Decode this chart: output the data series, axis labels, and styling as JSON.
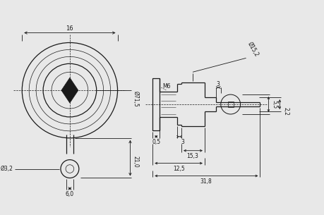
{
  "bg_color": "#e8e8e8",
  "line_color": "#1a1a1a",
  "dim_color": "#1a1a1a",
  "fig_width": 4.59,
  "fig_height": 3.05,
  "dpi": 100,
  "labels": {
    "l16": "16",
    "l71": "Ø71,5",
    "l21": "21,0",
    "ld32": "Ø3,2",
    "l60": "6,0",
    "lM6": "M6",
    "l152": "Ø15,2",
    "l3t": "3",
    "l55": "5,5",
    "l22": "2,2",
    "l05": "0,5",
    "l3b": "3",
    "l153": "15,3",
    "l125": "12,5",
    "l318": "31,8"
  }
}
